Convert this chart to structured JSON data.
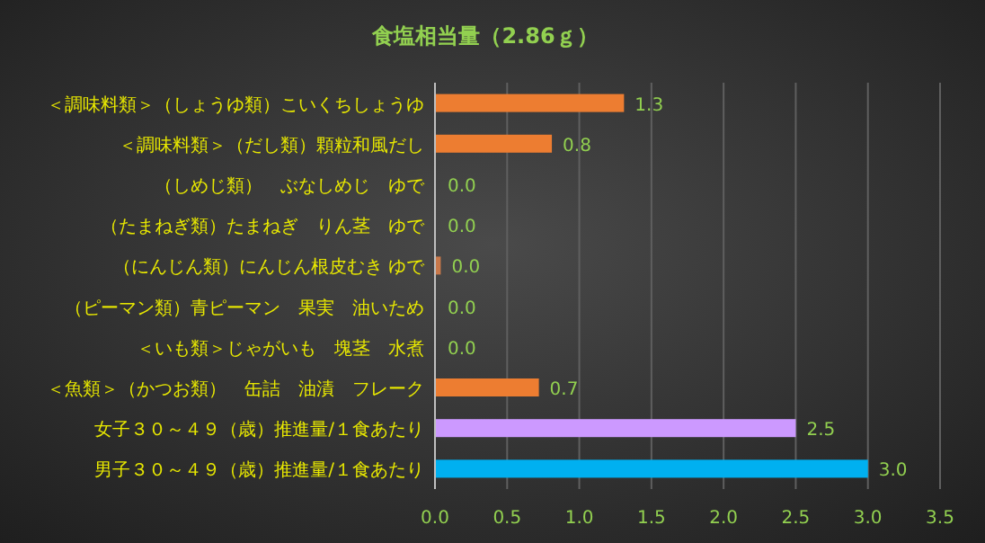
{
  "chart_data": {
    "type": "bar",
    "orientation": "horizontal",
    "title": "食塩相当量（2.86ｇ）",
    "categories": [
      "＜調味料類＞（しょうゆ類）こいくちしょうゆ",
      "＜調味料類＞（だし類）顆粒和風だし",
      "（しめじ類）　ぶなしめじ　ゆで",
      "（たまねぎ類）たまねぎ　りん茎　ゆで",
      "（にんじん類）にんじん根皮むき ゆで",
      "（ピーマン類）青ピーマン　果実　油いため",
      "＜いも類＞じゃがいも　塊茎　水煮",
      "＜魚類＞（かつお類）　缶詰　油漬　フレーク",
      "女子３０～４９（歳）推進量/１食あたり",
      "男子３０～４９（歳）推進量/１食あたり"
    ],
    "values": [
      1.31,
      0.81,
      0,
      0,
      0.04,
      0,
      0,
      0.72,
      2.5,
      3.0
    ],
    "value_labels": [
      "1.3",
      "0.8",
      "0.0",
      "0.0",
      "0.0",
      "0.0",
      "0.0",
      "0.7",
      "2.5",
      "3.0"
    ],
    "colors": [
      "#ed7d31",
      "#ed7d31",
      null,
      null,
      "#c8784a",
      null,
      null,
      "#ed7d31",
      "#cc99ff",
      "#00b0f0"
    ],
    "xlim": [
      0,
      3.5
    ],
    "xticks": [
      "0.0",
      "0.5",
      "1.0",
      "1.5",
      "2.0",
      "2.5",
      "3.0",
      "3.5"
    ],
    "grid": "x"
  }
}
